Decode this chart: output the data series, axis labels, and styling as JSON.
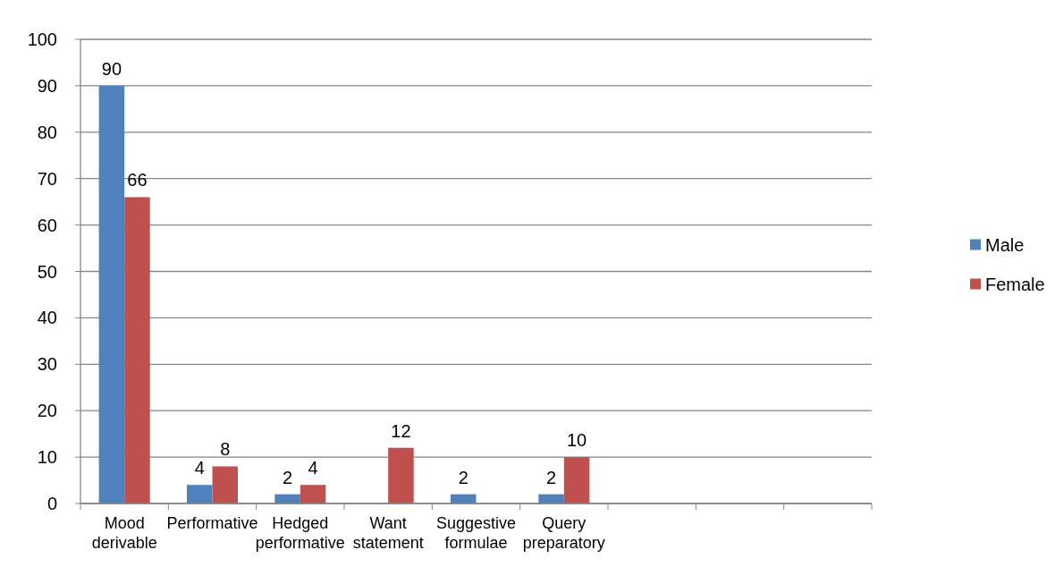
{
  "chart_data": {
    "type": "bar",
    "categories": [
      "Mood derivable",
      "Performative",
      "Hedged performative",
      "Want statement",
      "Suggestive formulae",
      "Query preparatory",
      null,
      null,
      null
    ],
    "series": [
      {
        "name": "Male",
        "color": "#4f81bd",
        "values": [
          90,
          4,
          2,
          null,
          2,
          2,
          null,
          null,
          null
        ]
      },
      {
        "name": "Female",
        "color": "#c0504d",
        "values": [
          66,
          8,
          4,
          12,
          null,
          10,
          null,
          null,
          null
        ]
      }
    ],
    "ylim": [
      0,
      100
    ],
    "yticks": [
      0,
      10,
      20,
      30,
      40,
      50,
      60,
      70,
      80,
      90,
      100
    ],
    "grid": "y",
    "legend": "right",
    "data_labels": true
  }
}
